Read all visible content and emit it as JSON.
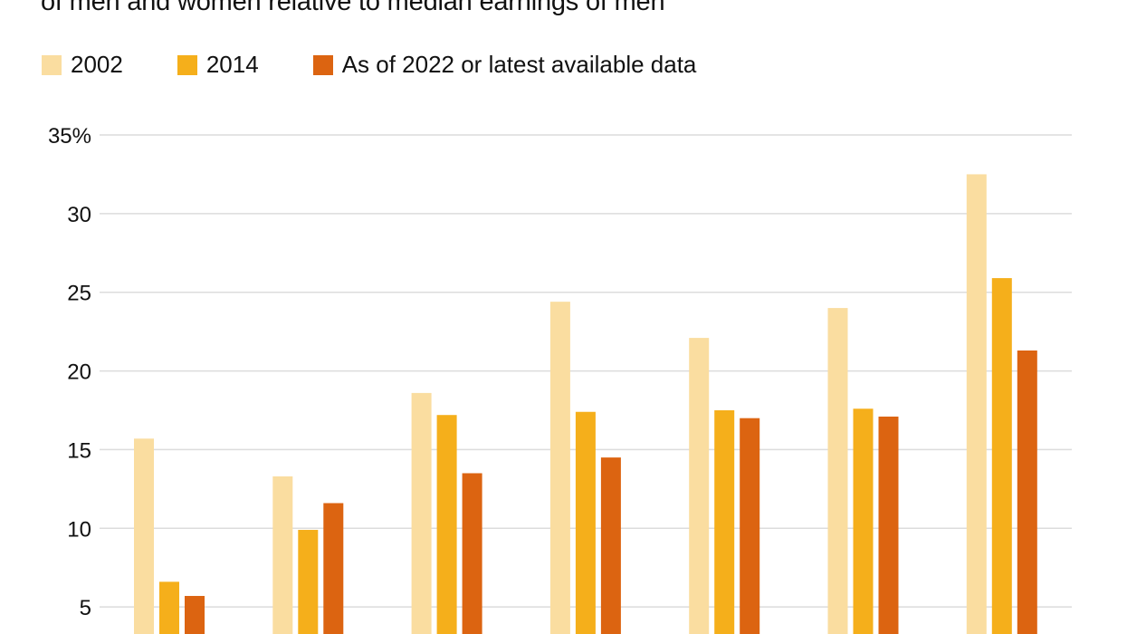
{
  "chart_data": {
    "type": "bar",
    "title": "of men and women relative to median earnings of men",
    "categories": [
      "",
      "",
      "",
      "",
      "",
      "",
      ""
    ],
    "series": [
      {
        "name": "2002",
        "color": "#FADDA0",
        "values": [
          15.7,
          13.3,
          18.6,
          24.4,
          22.1,
          24.0,
          32.5
        ]
      },
      {
        "name": "2014",
        "color": "#F5AF1B",
        "values": [
          6.6,
          9.9,
          17.2,
          17.4,
          17.5,
          17.6,
          25.9
        ]
      },
      {
        "name": "As of 2022 or latest available data",
        "color": "#DC6411",
        "values": [
          5.7,
          11.6,
          13.5,
          14.5,
          17.0,
          17.1,
          21.3
        ]
      }
    ],
    "yticks": [
      "35%",
      "30",
      "25",
      "20",
      "15",
      "10",
      "5"
    ],
    "ytick_values": [
      35,
      30,
      25,
      20,
      15,
      10,
      5
    ],
    "ylim": [
      0,
      35
    ],
    "grid": true,
    "legend_placement": "top-left"
  }
}
